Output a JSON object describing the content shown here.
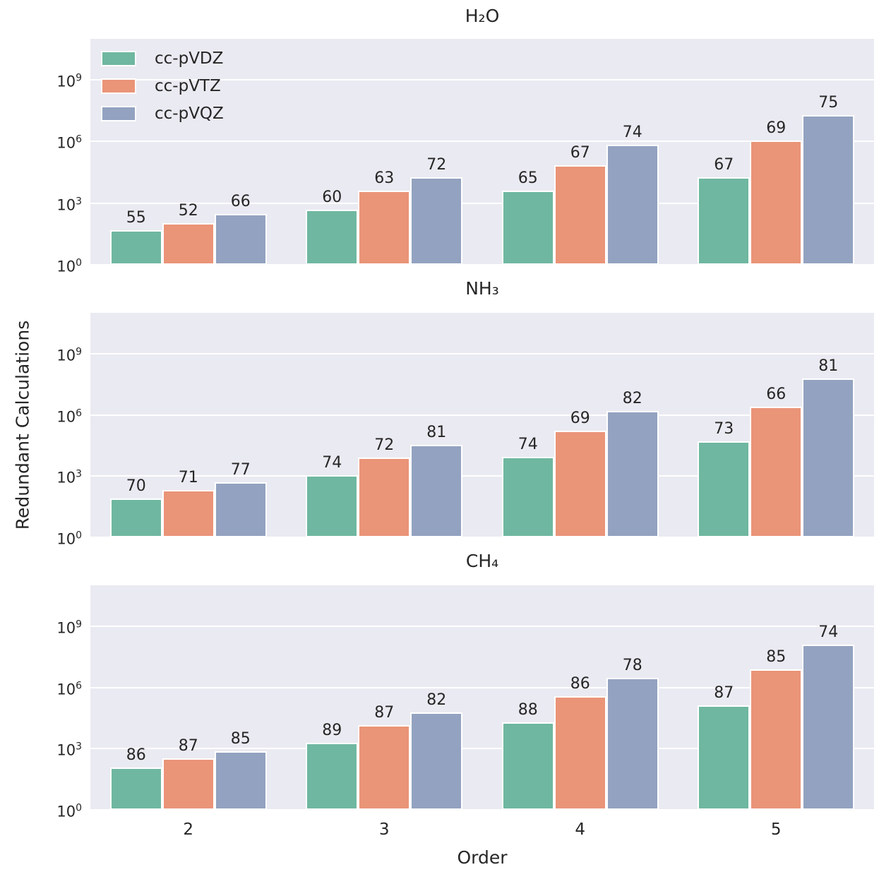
{
  "figure": {
    "ylabel": "Redundant Calculations",
    "xlabel": "Order",
    "background_color": "#ffffff",
    "panel_background_color": "#eaeaf2",
    "grid_color": "#ffffff",
    "text_color": "#262626"
  },
  "legend": {
    "position": "upper left of first panel",
    "items": [
      {
        "label": "cc-pVDZ",
        "color": "#6fb7a0"
      },
      {
        "label": "cc-pVTZ",
        "color": "#ea9478"
      },
      {
        "label": "cc-pVQZ",
        "color": "#93a2c0"
      }
    ]
  },
  "chart_data": {
    "type": "bar",
    "x": [
      "2",
      "3",
      "4",
      "5"
    ],
    "xlabel": "Order",
    "ylabel": "Redundant Calculations",
    "yscale": "log",
    "ylim": [
      1,
      100000000000
    ],
    "ytick_exponents": [
      0,
      3,
      6,
      9
    ],
    "grid": true,
    "legend_position": "upper left",
    "charts": [
      {
        "title": "H₂O",
        "series": [
          {
            "name": "cc-pVDZ",
            "color": "#6fb7a0",
            "values": [
              50,
              500,
              4000,
              19000
            ],
            "bar_labels": [
              "55",
              "60",
              "65",
              "67"
            ]
          },
          {
            "name": "cc-pVTZ",
            "color": "#ea9478",
            "values": [
              110,
              4000,
              70000,
              1100000
            ],
            "bar_labels": [
              "52",
              "63",
              "67",
              "69"
            ]
          },
          {
            "name": "cc-pVQZ",
            "color": "#93a2c0",
            "values": [
              300,
              19000,
              720000,
              20000000
            ],
            "bar_labels": [
              "66",
              "72",
              "74",
              "75"
            ]
          }
        ]
      },
      {
        "title": "NH₃",
        "series": [
          {
            "name": "cc-pVDZ",
            "color": "#6fb7a0",
            "values": [
              80,
              1100,
              8500,
              50000
            ],
            "bar_labels": [
              "70",
              "74",
              "74",
              "73"
            ]
          },
          {
            "name": "cc-pVTZ",
            "color": "#ea9478",
            "values": [
              210,
              7800,
              170000,
              2600000
            ],
            "bar_labels": [
              "71",
              "72",
              "69",
              "66"
            ]
          },
          {
            "name": "cc-pVQZ",
            "color": "#93a2c0",
            "values": [
              500,
              35000,
              1600000,
              60000000
            ],
            "bar_labels": [
              "77",
              "81",
              "82",
              "81"
            ]
          }
        ]
      },
      {
        "title": "CH₄",
        "series": [
          {
            "name": "cc-pVDZ",
            "color": "#6fb7a0",
            "values": [
              115,
              2000,
              19000,
              130000
            ],
            "bar_labels": [
              "86",
              "89",
              "88",
              "87"
            ]
          },
          {
            "name": "cc-pVTZ",
            "color": "#ea9478",
            "values": [
              340,
              14000,
              380000,
              7600000
            ],
            "bar_labels": [
              "87",
              "87",
              "86",
              "85"
            ]
          },
          {
            "name": "cc-pVQZ",
            "color": "#93a2c0",
            "values": [
              750,
              58000,
              3000000,
              120000000
            ],
            "bar_labels": [
              "85",
              "82",
              "78",
              "74"
            ]
          }
        ]
      }
    ]
  }
}
